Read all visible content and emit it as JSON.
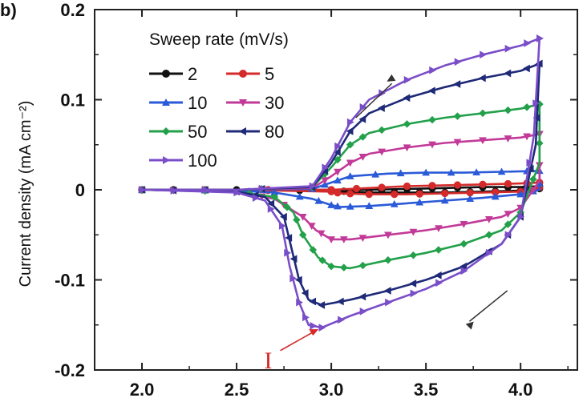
{
  "panel_label": "b)",
  "chart_data": {
    "type": "line",
    "title": "",
    "xlabel": "",
    "ylabel": "Current density (mA cm⁻²)",
    "xlim": [
      1.75,
      4.3
    ],
    "ylim": [
      -0.2,
      0.2
    ],
    "xticks": [
      "2.0",
      "2.5",
      "3.0",
      "3.5",
      "4.0"
    ],
    "xtick_values": [
      2.0,
      2.5,
      3.0,
      3.5,
      4.0
    ],
    "yticks": [
      "0.2",
      "0.1",
      "0",
      "-0.1",
      "-0.2"
    ],
    "ytick_values": [
      0.2,
      0.1,
      0,
      -0.1,
      -0.2
    ],
    "legend_title": "Sweep rate (mV/s)",
    "legend_position": "top-left",
    "grid": false,
    "series": [
      {
        "name": "2",
        "color": "#111111",
        "marker": "circle",
        "anodic": [
          [
            2.0,
            0
          ],
          [
            2.5,
            0
          ],
          [
            3.0,
            0
          ],
          [
            3.2,
            0
          ],
          [
            3.4,
            0.001
          ],
          [
            3.6,
            0.002
          ],
          [
            3.8,
            0.003
          ],
          [
            4.0,
            0.003
          ],
          [
            4.1,
            0.004
          ]
        ],
        "cathodic": [
          [
            4.1,
            0.004
          ],
          [
            4.1,
            0
          ],
          [
            4.0,
            -0.001
          ],
          [
            3.8,
            -0.002
          ],
          [
            3.6,
            -0.003
          ],
          [
            3.4,
            -0.003
          ],
          [
            3.2,
            -0.003
          ],
          [
            3.0,
            -0.001
          ],
          [
            2.5,
            0
          ],
          [
            2.0,
            0
          ]
        ]
      },
      {
        "name": "5",
        "color": "#d42a2a",
        "marker": "circle",
        "anodic": [
          [
            2.0,
            0
          ],
          [
            2.5,
            0
          ],
          [
            3.0,
            0
          ],
          [
            3.2,
            0.002
          ],
          [
            3.4,
            0.004
          ],
          [
            3.6,
            0.005
          ],
          [
            3.8,
            0.006
          ],
          [
            4.0,
            0.007
          ],
          [
            4.1,
            0.008
          ]
        ],
        "cathodic": [
          [
            4.1,
            0.008
          ],
          [
            4.1,
            0
          ],
          [
            4.0,
            -0.002
          ],
          [
            3.8,
            -0.003
          ],
          [
            3.6,
            -0.004
          ],
          [
            3.4,
            -0.005
          ],
          [
            3.2,
            -0.005
          ],
          [
            3.05,
            -0.004
          ],
          [
            3.0,
            -0.002
          ],
          [
            2.5,
            0
          ],
          [
            2.0,
            0
          ]
        ]
      },
      {
        "name": "10",
        "color": "#2a5ad8",
        "marker": "triangle-up",
        "anodic": [
          [
            2.0,
            0
          ],
          [
            2.5,
            0
          ],
          [
            2.9,
            0.001
          ],
          [
            3.0,
            0.008
          ],
          [
            3.1,
            0.015
          ],
          [
            3.3,
            0.018
          ],
          [
            3.5,
            0.019
          ],
          [
            3.7,
            0.019
          ],
          [
            3.9,
            0.02
          ],
          [
            4.1,
            0.021
          ]
        ],
        "cathodic": [
          [
            4.1,
            0.021
          ],
          [
            4.1,
            0
          ],
          [
            4.0,
            -0.005
          ],
          [
            3.8,
            -0.009
          ],
          [
            3.6,
            -0.012
          ],
          [
            3.4,
            -0.015
          ],
          [
            3.2,
            -0.018
          ],
          [
            3.05,
            -0.019
          ],
          [
            3.0,
            -0.017
          ],
          [
            2.9,
            -0.01
          ],
          [
            2.7,
            -0.003
          ],
          [
            2.5,
            -0.001
          ],
          [
            2.0,
            0
          ]
        ]
      },
      {
        "name": "30",
        "color": "#c23a98",
        "marker": "triangle-down",
        "anodic": [
          [
            2.0,
            0
          ],
          [
            2.5,
            0
          ],
          [
            2.9,
            0.002
          ],
          [
            3.0,
            0.015
          ],
          [
            3.1,
            0.03
          ],
          [
            3.2,
            0.04
          ],
          [
            3.4,
            0.047
          ],
          [
            3.6,
            0.052
          ],
          [
            3.8,
            0.055
          ],
          [
            4.0,
            0.058
          ],
          [
            4.1,
            0.062
          ]
        ],
        "cathodic": [
          [
            4.1,
            0.062
          ],
          [
            4.1,
            0.01
          ],
          [
            4.0,
            -0.02
          ],
          [
            3.9,
            -0.03
          ],
          [
            3.7,
            -0.038
          ],
          [
            3.5,
            -0.045
          ],
          [
            3.3,
            -0.05
          ],
          [
            3.1,
            -0.055
          ],
          [
            3.0,
            -0.055
          ],
          [
            2.92,
            -0.045
          ],
          [
            2.85,
            -0.03
          ],
          [
            2.7,
            -0.01
          ],
          [
            2.5,
            -0.002
          ],
          [
            2.0,
            0
          ]
        ]
      },
      {
        "name": "50",
        "color": "#22a04a",
        "marker": "diamond",
        "anodic": [
          [
            2.0,
            0
          ],
          [
            2.5,
            0
          ],
          [
            2.9,
            0.003
          ],
          [
            3.0,
            0.025
          ],
          [
            3.1,
            0.05
          ],
          [
            3.2,
            0.063
          ],
          [
            3.4,
            0.073
          ],
          [
            3.6,
            0.08
          ],
          [
            3.8,
            0.085
          ],
          [
            4.0,
            0.09
          ],
          [
            4.1,
            0.095
          ]
        ],
        "cathodic": [
          [
            4.1,
            0.095
          ],
          [
            4.1,
            0.03
          ],
          [
            4.0,
            -0.025
          ],
          [
            3.9,
            -0.045
          ],
          [
            3.7,
            -0.06
          ],
          [
            3.5,
            -0.07
          ],
          [
            3.3,
            -0.078
          ],
          [
            3.1,
            -0.087
          ],
          [
            3.0,
            -0.085
          ],
          [
            2.93,
            -0.075
          ],
          [
            2.85,
            -0.05
          ],
          [
            2.8,
            -0.025
          ],
          [
            2.7,
            -0.008
          ],
          [
            2.5,
            -0.002
          ],
          [
            2.0,
            0
          ]
        ]
      },
      {
        "name": "80",
        "color": "#1f2a78",
        "marker": "triangle-left",
        "anodic": [
          [
            2.0,
            0
          ],
          [
            2.5,
            0
          ],
          [
            2.9,
            0.003
          ],
          [
            3.0,
            0.03
          ],
          [
            3.1,
            0.065
          ],
          [
            3.2,
            0.085
          ],
          [
            3.4,
            0.102
          ],
          [
            3.6,
            0.114
          ],
          [
            3.8,
            0.124
          ],
          [
            4.0,
            0.132
          ],
          [
            4.1,
            0.14
          ]
        ],
        "cathodic": [
          [
            4.1,
            0.14
          ],
          [
            4.08,
            0.05
          ],
          [
            4.0,
            -0.03
          ],
          [
            3.9,
            -0.06
          ],
          [
            3.7,
            -0.085
          ],
          [
            3.5,
            -0.1
          ],
          [
            3.3,
            -0.112
          ],
          [
            3.1,
            -0.122
          ],
          [
            2.95,
            -0.128
          ],
          [
            2.88,
            -0.122
          ],
          [
            2.83,
            -0.1
          ],
          [
            2.79,
            -0.065
          ],
          [
            2.75,
            -0.03
          ],
          [
            2.65,
            -0.008
          ],
          [
            2.5,
            -0.002
          ],
          [
            2.0,
            0
          ]
        ]
      },
      {
        "name": "100",
        "color": "#7a4ec8",
        "marker": "triangle-right",
        "anodic": [
          [
            2.0,
            0
          ],
          [
            2.5,
            0
          ],
          [
            2.9,
            0.004
          ],
          [
            3.0,
            0.035
          ],
          [
            3.1,
            0.075
          ],
          [
            3.2,
            0.1
          ],
          [
            3.4,
            0.122
          ],
          [
            3.6,
            0.138
          ],
          [
            3.8,
            0.15
          ],
          [
            4.0,
            0.16
          ],
          [
            4.1,
            0.168
          ]
        ],
        "cathodic": [
          [
            4.1,
            0.168
          ],
          [
            4.07,
            0.06
          ],
          [
            4.0,
            -0.03
          ],
          [
            3.9,
            -0.06
          ],
          [
            3.7,
            -0.09
          ],
          [
            3.5,
            -0.11
          ],
          [
            3.3,
            -0.125
          ],
          [
            3.1,
            -0.14
          ],
          [
            2.95,
            -0.153
          ],
          [
            2.88,
            -0.15
          ],
          [
            2.83,
            -0.125
          ],
          [
            2.78,
            -0.085
          ],
          [
            2.74,
            -0.04
          ],
          [
            2.65,
            -0.012
          ],
          [
            2.5,
            -0.003
          ],
          [
            2.0,
            0
          ]
        ]
      }
    ],
    "annotations": [
      {
        "text": "I",
        "color": "#d42a2a",
        "at": [
          2.95,
          -0.153
        ]
      }
    ]
  }
}
